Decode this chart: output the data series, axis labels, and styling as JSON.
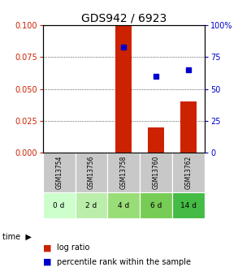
{
  "title": "GDS942 / 6923",
  "samples": [
    "GSM13754",
    "GSM13756",
    "GSM13758",
    "GSM13760",
    "GSM13762"
  ],
  "time_labels": [
    "0 d",
    "2 d",
    "4 d",
    "6 d",
    "14 d"
  ],
  "log_ratio": [
    0.0,
    0.0,
    0.1,
    0.02,
    0.04
  ],
  "percentile_rank": [
    null,
    null,
    83,
    60,
    65
  ],
  "left_ylim": [
    0,
    0.1
  ],
  "right_ylim": [
    0,
    100
  ],
  "left_yticks": [
    0,
    0.025,
    0.05,
    0.075,
    0.1
  ],
  "right_yticks": [
    0,
    25,
    50,
    75,
    100
  ],
  "bar_color": "#cc2200",
  "dot_color": "#0000cc",
  "bar_width": 0.5,
  "time_cell_colors": [
    "#ccffcc",
    "#bbeeaa",
    "#99dd77",
    "#77cc55",
    "#44bb44"
  ],
  "gsm_row_color": "#c8c8c8",
  "title_fontsize": 10,
  "tick_fontsize": 7,
  "legend_fontsize": 7
}
